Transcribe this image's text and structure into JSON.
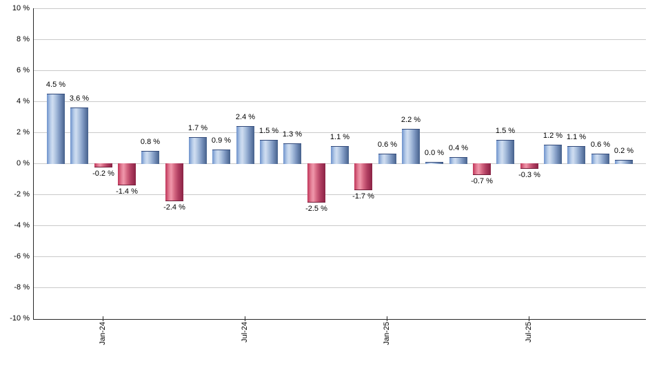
{
  "chart_data": {
    "type": "bar",
    "title": "",
    "xlabel": "",
    "ylabel": "",
    "ylim": [
      -10,
      10
    ],
    "y_tick_step_pct": 2,
    "grid": true,
    "legend": null,
    "y_tick_labels": [
      "10 %",
      "8 %",
      "6 %",
      "4 %",
      "2 %",
      "0 %",
      "-2 %",
      "-4 %",
      "-6 %",
      "-8 %",
      "-10 %"
    ],
    "x_ticks": [
      {
        "label": "Jan-24",
        "bar_index": 2
      },
      {
        "label": "Jul-24",
        "bar_index": 8
      },
      {
        "label": "Jan-25",
        "bar_index": 14
      },
      {
        "label": "Jul-25",
        "bar_index": 20
      }
    ],
    "values": [
      4.5,
      3.6,
      -0.2,
      -1.4,
      0.8,
      -2.4,
      1.7,
      0.9,
      2.4,
      1.5,
      1.3,
      -2.5,
      1.1,
      -1.7,
      0.6,
      2.2,
      0.0,
      0.4,
      -0.7,
      1.5,
      -0.3,
      1.2,
      1.1,
      0.6,
      0.2
    ],
    "bar_labels": [
      "4.5 %",
      "3.6 %",
      "-0.2 %",
      "-1.4 %",
      "0.8 %",
      "-2.4 %",
      "1.7 %",
      "0.9 %",
      "2.4 %",
      "1.5 %",
      "1.3 %",
      "-2.5 %",
      "1.1 %",
      "-1.7 %",
      "0.6 %",
      "2.2 %",
      "0.0 %",
      "0.4 %",
      "-0.7 %",
      "1.5 %",
      "-0.3 %",
      "1.2 %",
      "1.1 %",
      "0.6 %",
      "0.2 %"
    ]
  },
  "colors": {
    "positive_bar_base": "#5b7db3",
    "negative_bar_base": "#c2355c",
    "positive_gradient": [
      "#6e92cc 0%",
      "#b7cce8 20%",
      "#d0def1 32%",
      "#a7bddc 52%",
      "#7b95bf 72%",
      "#45608b 100%"
    ],
    "negative_gradient": [
      "#c03459 0%",
      "#e27d94 20%",
      "#f097ab 32%",
      "#d2647f 52%",
      "#b03e61 72%",
      "#8a2244 100%"
    ],
    "positive_cap": "#31497a",
    "negative_cap": "#701b38",
    "gridline": "#c9c9c9",
    "axis": "#262626",
    "label_text": "#000000",
    "background": "#ffffff"
  }
}
